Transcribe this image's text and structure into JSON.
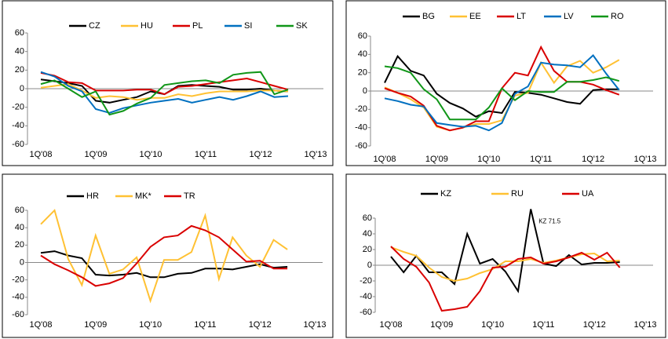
{
  "chart_data": [
    {
      "type": "line",
      "categories": [
        "1Q'08",
        null,
        null,
        null,
        "1Q'09",
        null,
        null,
        null,
        "1Q'10",
        null,
        null,
        null,
        "1Q'11",
        null,
        null,
        null,
        "1Q'12",
        null,
        null,
        null,
        "1Q'13"
      ],
      "ylim": [
        -60,
        60
      ],
      "yticks": [
        -60,
        -40,
        -20,
        0,
        20,
        40,
        60
      ],
      "series": [
        {
          "name": "CZ",
          "color": "#000000",
          "values": [
            10,
            8,
            6,
            3,
            -13,
            -15,
            -12,
            -9,
            -3,
            -6,
            3,
            4,
            3,
            2,
            -1,
            -1,
            0,
            -2,
            -3,
            null,
            null
          ]
        },
        {
          "name": "HU",
          "color": "#ffc133",
          "values": [
            1,
            3,
            5,
            -2,
            -10,
            -8,
            -9,
            -12,
            -10,
            -10,
            -6,
            -8,
            -5,
            -3,
            -3,
            -3,
            -2,
            -2,
            -3,
            null,
            null
          ]
        },
        {
          "name": "PL",
          "color": "#d90000",
          "values": [
            17,
            14,
            7,
            6,
            -2,
            -2,
            -2,
            -1,
            -1,
            -6,
            2,
            3,
            5,
            7,
            9,
            11,
            7,
            3,
            -1,
            null,
            null
          ]
        },
        {
          "name": "SI",
          "color": "#0070c0",
          "values": [
            18,
            13,
            3,
            -3,
            -22,
            -26,
            -21,
            -18,
            -15,
            -13,
            -11,
            -15,
            -12,
            -9,
            -12,
            -8,
            -3,
            -9,
            -8,
            null,
            null
          ]
        },
        {
          "name": "SK",
          "color": "#109618",
          "values": [
            5,
            9,
            0,
            -9,
            -3,
            -28,
            -24,
            -16,
            -10,
            4,
            6,
            8,
            9,
            6,
            15,
            17,
            18,
            -6,
            -1,
            null,
            null
          ]
        }
      ]
    },
    {
      "type": "line",
      "categories": [
        "1Q'08",
        null,
        null,
        null,
        "1Q'09",
        null,
        null,
        null,
        "1Q'10",
        null,
        null,
        null,
        "1Q'11",
        null,
        null,
        null,
        "1Q'12",
        null,
        null,
        null,
        "1Q'13"
      ],
      "ylim": [
        -60,
        60
      ],
      "yticks": [
        -60,
        -40,
        -20,
        0,
        20,
        40,
        60
      ],
      "series": [
        {
          "name": "BG",
          "color": "#000000",
          "values": [
            9,
            38,
            22,
            17,
            -3,
            -13,
            -19,
            -28,
            -22,
            -24,
            -1,
            -2,
            -4,
            -8,
            -12,
            -14,
            1,
            2,
            2,
            null,
            null
          ]
        },
        {
          "name": "EE",
          "color": "#ffc133",
          "values": [
            4,
            -2,
            -9,
            -18,
            -39,
            -43,
            -40,
            -36,
            -36,
            -32,
            -5,
            -2,
            31,
            9,
            27,
            33,
            20,
            26,
            34,
            null,
            null
          ]
        },
        {
          "name": "LT",
          "color": "#d90000",
          "values": [
            3,
            -2,
            -6,
            -16,
            -38,
            -43,
            -40,
            -33,
            -33,
            3,
            20,
            17,
            48,
            22,
            10,
            10,
            7,
            1,
            -4,
            null,
            null
          ]
        },
        {
          "name": "LV",
          "color": "#0070c0",
          "values": [
            -8,
            -11,
            -15,
            -17,
            -35,
            -37,
            -39,
            -38,
            -43,
            -35,
            -3,
            5,
            31,
            29,
            28,
            26,
            39,
            19,
            1,
            null,
            null
          ]
        },
        {
          "name": "RO",
          "color": "#109618",
          "values": [
            27,
            25,
            20,
            2,
            -9,
            -31,
            -31,
            -31,
            -18,
            3,
            -10,
            0,
            -1,
            -1,
            10,
            10,
            12,
            15,
            11,
            null,
            null
          ]
        }
      ]
    },
    {
      "type": "line",
      "categories": [
        "1Q'08",
        null,
        null,
        null,
        "1Q'09",
        null,
        null,
        null,
        "1Q'10",
        null,
        null,
        null,
        "1Q'11",
        null,
        null,
        null,
        "1Q'12",
        null,
        null,
        null,
        "1Q'13"
      ],
      "ylim": [
        -60,
        60
      ],
      "yticks": [
        -60,
        -40,
        -20,
        0,
        20,
        40,
        60
      ],
      "series": [
        {
          "name": "HR",
          "color": "#000000",
          "values": [
            11,
            13,
            8,
            5,
            -14,
            -15,
            -14,
            -12,
            -17,
            -17,
            -13,
            -12,
            -7,
            -7,
            -8,
            -5,
            -2,
            -6,
            -5,
            null,
            null
          ]
        },
        {
          "name": "MK*",
          "color": "#ffc133",
          "values": [
            44,
            60,
            4,
            -26,
            31,
            -13,
            -8,
            6,
            -44,
            3,
            3,
            12,
            54,
            -19,
            29,
            8,
            -5,
            26,
            15,
            null,
            null
          ]
        },
        {
          "name": "TR",
          "color": "#d90000",
          "values": [
            8,
            -2,
            -9,
            -17,
            -27,
            -24,
            -18,
            -1,
            18,
            29,
            31,
            42,
            37,
            29,
            15,
            1,
            2,
            -7,
            -7,
            null,
            null
          ]
        }
      ]
    },
    {
      "type": "line",
      "categories": [
        "1Q'08",
        null,
        null,
        null,
        "1Q'09",
        null,
        null,
        null,
        "1Q'10",
        null,
        null,
        null,
        "1Q'11",
        null,
        null,
        null,
        "1Q'12",
        null,
        null,
        null,
        "1Q'13"
      ],
      "ylim": [
        -60,
        60
      ],
      "yticks": [
        -60,
        -40,
        -20,
        0,
        20,
        40,
        60
      ],
      "annotation": "KZ 71.5",
      "series": [
        {
          "name": "KZ",
          "color": "#000000",
          "values": [
            11,
            -9,
            12,
            -9,
            -9,
            -24,
            40,
            2,
            8,
            -8,
            -33,
            71.5,
            2,
            -1,
            13,
            1,
            3,
            3,
            4,
            null,
            null
          ]
        },
        {
          "name": "RU",
          "color": "#ffc133",
          "values": [
            23,
            17,
            12,
            -3,
            -15,
            -20,
            -17,
            -10,
            -5,
            5,
            5,
            8,
            3,
            6,
            10,
            14,
            15,
            5,
            6,
            null,
            null
          ]
        },
        {
          "name": "UA",
          "color": "#d90000",
          "values": [
            24,
            8,
            -2,
            -22,
            -58,
            -56,
            -53,
            -33,
            -3,
            -2,
            8,
            10,
            2,
            5,
            10,
            16,
            7,
            16,
            -3,
            null,
            null
          ]
        }
      ]
    }
  ]
}
